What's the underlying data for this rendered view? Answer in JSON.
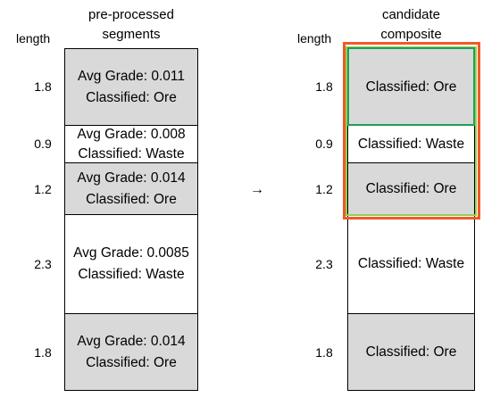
{
  "left_column": {
    "header_line1": "pre-processed",
    "header_line2": "segments",
    "length_label": "length",
    "segments": [
      {
        "length": "1.8",
        "grade": "Avg Grade: 0.011",
        "class": "Classified: Ore",
        "fill": "grey"
      },
      {
        "length": "0.9",
        "grade": "Avg Grade: 0.008",
        "class": "Classified: Waste",
        "fill": "white"
      },
      {
        "length": "1.2",
        "grade": "Avg Grade: 0.014",
        "class": "Classified: Ore",
        "fill": "grey"
      },
      {
        "length": "2.3",
        "grade": "Avg Grade: 0.0085",
        "class": "Classified: Waste",
        "fill": "white"
      },
      {
        "length": "1.8",
        "grade": "Avg Grade: 0.014",
        "class": "Classified: Ore",
        "fill": "grey"
      }
    ]
  },
  "arrow": "→",
  "right_column": {
    "header_line1": "candidate",
    "header_line2": "composite",
    "length_label": "length",
    "segments": [
      {
        "length": "1.8",
        "class": "Classified: Ore",
        "fill": "grey"
      },
      {
        "length": "0.9",
        "class": "Classified: Waste",
        "fill": "white"
      },
      {
        "length": "1.2",
        "class": "Classified: Ore",
        "fill": "grey"
      },
      {
        "length": "2.3",
        "class": "Classified: Waste",
        "fill": "white"
      },
      {
        "length": "1.8",
        "class": "Classified: Ore",
        "fill": "grey"
      }
    ]
  },
  "highlight_colors": {
    "outer_frame": "#f05a28",
    "middle_frame": "#92d050",
    "inner_frame": "#1ea05a",
    "segment_grey": "#d9d9d9"
  }
}
